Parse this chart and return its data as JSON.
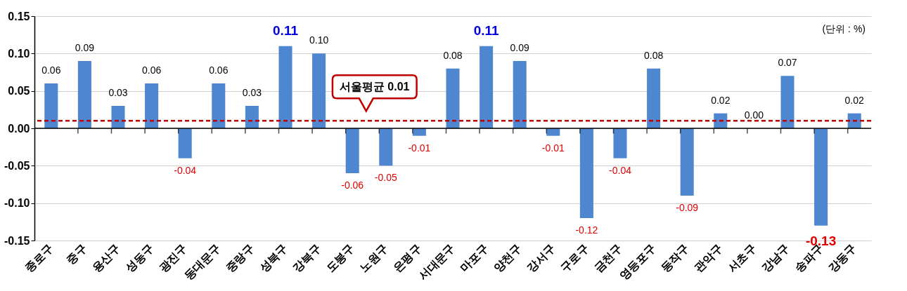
{
  "chart_data": {
    "type": "bar",
    "categories": [
      "종로구",
      "중구",
      "용산구",
      "성동구",
      "광진구",
      "동대문구",
      "중랑구",
      "성북구",
      "강북구",
      "도봉구",
      "노원구",
      "은평구",
      "서대문구",
      "마포구",
      "양천구",
      "강서구",
      "구로구",
      "금천구",
      "영등포구",
      "동작구",
      "관악구",
      "서초구",
      "강남구",
      "송파구",
      "강동구"
    ],
    "values": [
      0.06,
      0.09,
      0.03,
      0.06,
      -0.04,
      0.06,
      0.03,
      0.11,
      0.1,
      -0.06,
      -0.05,
      -0.01,
      0.08,
      0.11,
      0.09,
      -0.01,
      -0.12,
      -0.04,
      0.08,
      -0.09,
      0.02,
      0.0,
      0.07,
      -0.13,
      0.02
    ],
    "value_labels": [
      "0.06",
      "0.09",
      "0.03",
      "0.06",
      "-0.04",
      "0.06",
      "0.03",
      "0.11",
      "0.10",
      "-0.06",
      "-0.05",
      "-0.01",
      "0.08",
      "0.11",
      "0.09",
      "-0.01",
      "-0.12",
      "-0.04",
      "0.08",
      "-0.09",
      "0.02",
      "0.00",
      "0.07",
      "-0.13",
      "0.02"
    ],
    "color": "#4f86d0",
    "ylim": [
      -0.15,
      0.15
    ],
    "yticks": [
      {
        "value": -0.15,
        "label": "-0.15"
      },
      {
        "value": -0.1,
        "label": "-0.10"
      },
      {
        "value": -0.05,
        "label": "-0.05"
      },
      {
        "value": 0,
        "label": "0.00"
      },
      {
        "value": 0.05,
        "label": "0.05"
      },
      {
        "value": 0.1,
        "label": "0.10"
      },
      {
        "value": 0.15,
        "label": "0.15"
      }
    ],
    "grid": "y",
    "ref_lines": [
      {
        "axis": "y",
        "value": 0.01,
        "label": "서울평균 0.01",
        "color": "#c00000",
        "line_style": "dashed"
      }
    ],
    "annotations": [
      "(단위 : %)"
    ]
  }
}
